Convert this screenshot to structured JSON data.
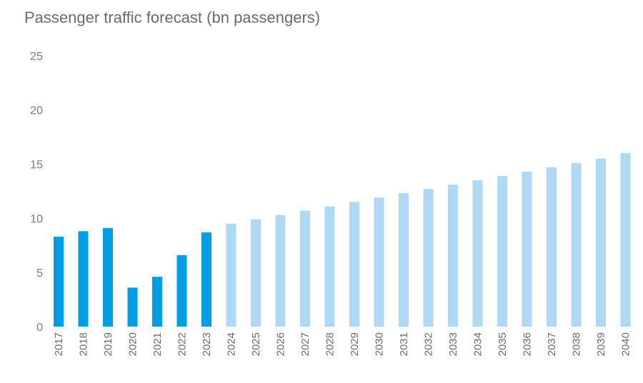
{
  "chart_data": {
    "type": "bar",
    "title": "Passenger traffic forecast (bn passengers)",
    "xlabel": "",
    "ylabel": "",
    "ylim": [
      0,
      25
    ],
    "yticks": [
      "0",
      "5",
      "10",
      "15",
      "20",
      "25"
    ],
    "grid": false,
    "categories": [
      "2017",
      "2018",
      "2019",
      "2020",
      "2021",
      "2022",
      "2023",
      "2024",
      "2025",
      "2026",
      "2027",
      "2028",
      "2029",
      "2030",
      "2031",
      "2032",
      "2033",
      "2034",
      "2035",
      "2036",
      "2037",
      "2038",
      "2039",
      "2040"
    ],
    "values": [
      8.3,
      8.8,
      9.1,
      3.6,
      4.6,
      6.6,
      8.7,
      9.5,
      9.9,
      10.3,
      10.7,
      11.1,
      11.5,
      11.9,
      12.3,
      12.7,
      13.1,
      13.5,
      13.9,
      14.3,
      14.7,
      15.1,
      15.5,
      16.0
    ],
    "actual_color": "#009fe3",
    "forecast_color": "#aed8f3",
    "actual_count": 7
  }
}
